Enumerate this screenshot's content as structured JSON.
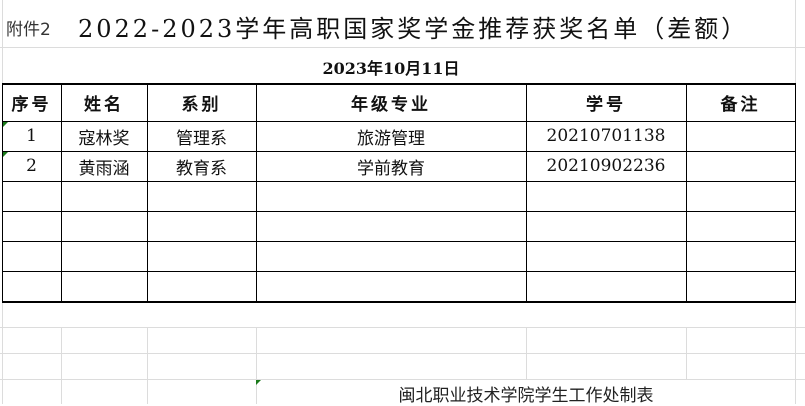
{
  "attachment_label": "附件2",
  "title": "2022-2023学年高职国家奖学金推荐获奖名单（差额）",
  "date": "2023年10月11日",
  "table": {
    "headers": [
      "序号",
      "姓名",
      "系别",
      "年级专业",
      "学号",
      "备注"
    ],
    "rows": [
      [
        "1",
        "寇林奖",
        "管理系",
        "旅游管理",
        "20210701138",
        ""
      ],
      [
        "2",
        "黄雨涵",
        "教育系",
        "学前教育",
        "20210902236",
        ""
      ],
      [
        "",
        "",
        "",
        "",
        "",
        ""
      ],
      [
        "",
        "",
        "",
        "",
        "",
        ""
      ],
      [
        "",
        "",
        "",
        "",
        "",
        ""
      ],
      [
        "",
        "",
        "",
        "",
        "",
        ""
      ]
    ]
  },
  "footer": "闽北职业技术学院学生工作处制表",
  "colors": {
    "border": "#000000",
    "gridline": "#dcdcdc",
    "comment_marker": "#1a7a1a"
  }
}
